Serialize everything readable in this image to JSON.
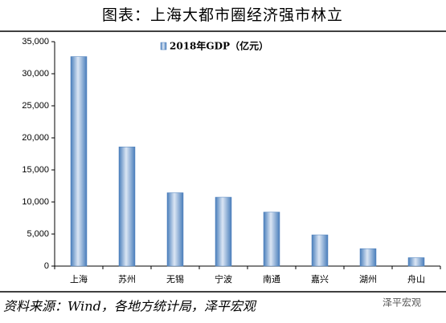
{
  "chart_data": {
    "type": "bar",
    "title": "图表：上海大都市圈经济强市林立",
    "categories": [
      "上海",
      "苏州",
      "无锡",
      "宁波",
      "南通",
      "嘉兴",
      "湖州",
      "舟山"
    ],
    "series": [
      {
        "name": "2018年GDP（亿元）",
        "color": "#4a7ebb",
        "values": [
          32680,
          18597,
          11439,
          10746,
          8427,
          4872,
          2719,
          1317
        ]
      }
    ],
    "ylim": [
      0,
      35000
    ],
    "yticks": [
      0,
      {
        "value": 5000,
        "label": "5,000"
      },
      {
        "value": 10000,
        "label": "10,000"
      },
      {
        "value": 15000,
        "label": "15,000"
      },
      {
        "value": 20000,
        "label": "20,000"
      },
      {
        "value": 25000,
        "label": "25,000"
      },
      {
        "value": 30000,
        "label": "30,000"
      },
      {
        "value": 35000,
        "label": "35,000"
      }
    ],
    "legend": "top",
    "grid": false,
    "source": "资料来源：Wind，各地方统计局，泽平宏观",
    "watermark": "泽平宏观"
  }
}
